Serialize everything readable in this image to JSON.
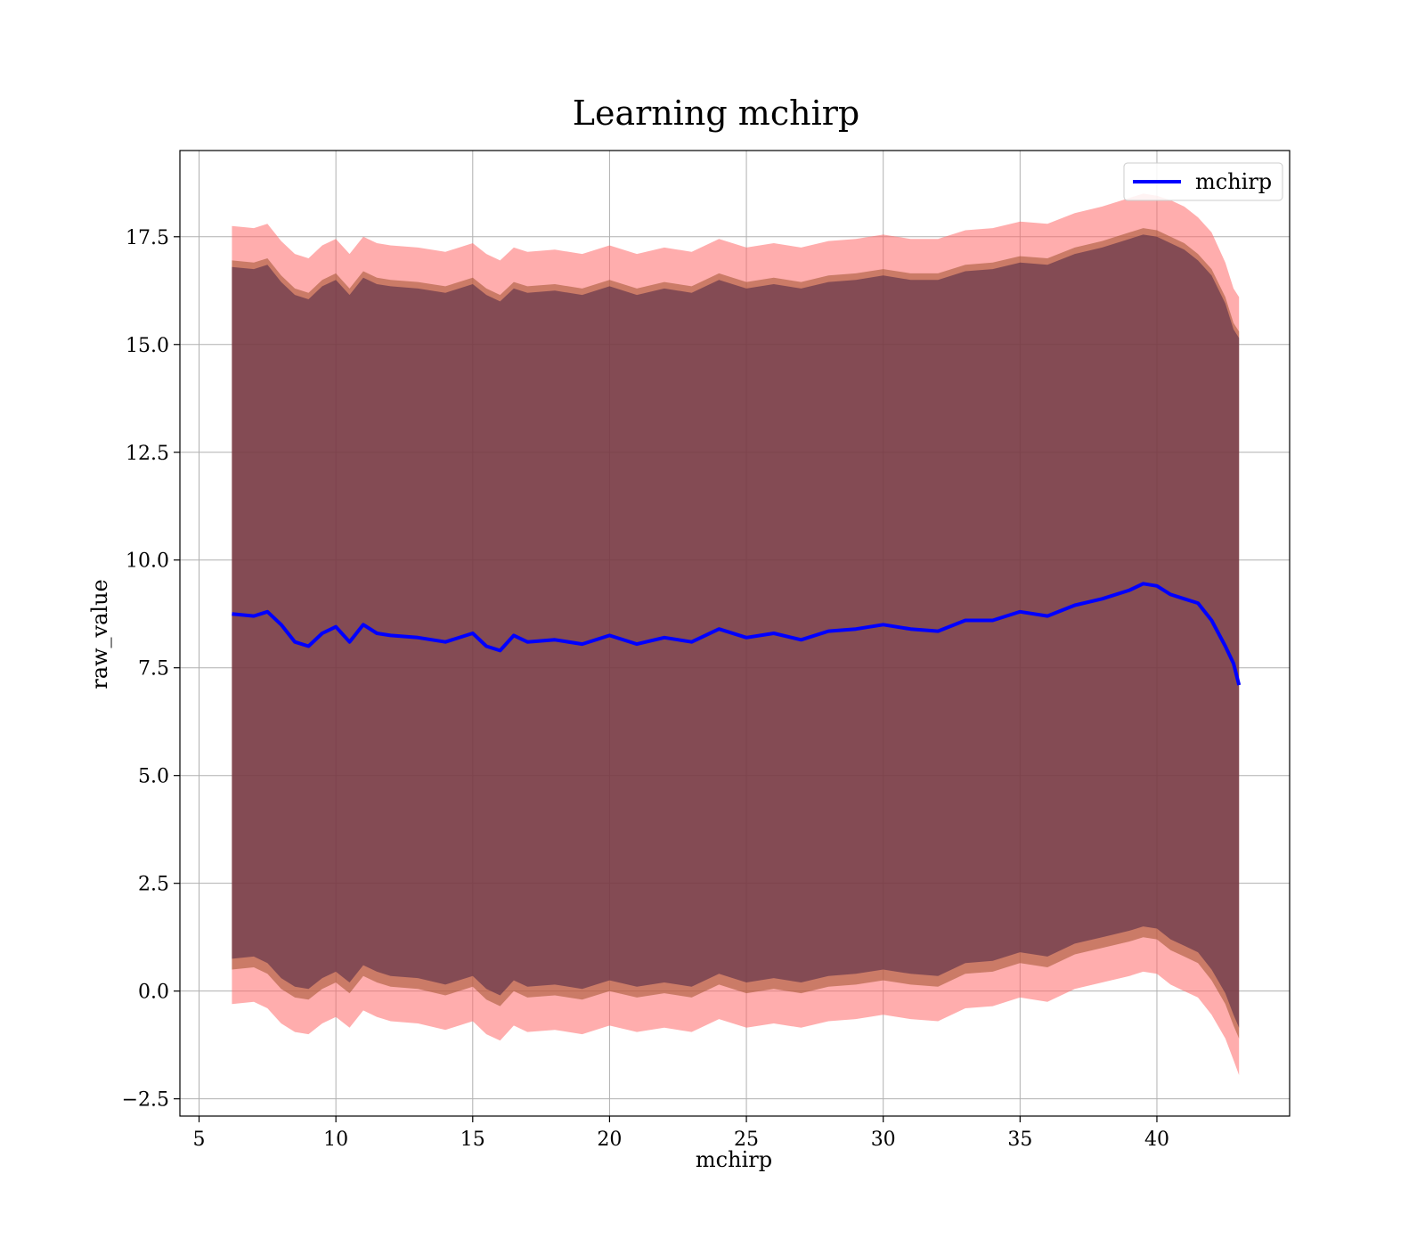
{
  "chart_data": {
    "type": "area",
    "title": "Learning mchirp",
    "xlabel": "mchirp",
    "ylabel": "raw_value",
    "xlim": [
      4.3,
      44.85
    ],
    "ylim": [
      -2.9,
      19.5
    ],
    "xticks": [
      5,
      10,
      15,
      20,
      25,
      30,
      35,
      40
    ],
    "xtick_labels": [
      "5",
      "10",
      "15",
      "20",
      "25",
      "30",
      "35",
      "40"
    ],
    "yticks": [
      -2.5,
      0.0,
      2.5,
      5.0,
      7.5,
      10.0,
      12.5,
      15.0,
      17.5
    ],
    "ytick_labels": [
      "−2.5",
      "0.0",
      "2.5",
      "5.0",
      "7.5",
      "10.0",
      "12.5",
      "15.0",
      "17.5"
    ],
    "grid": true,
    "legend": {
      "position": "top-right",
      "entries": [
        "mchirp"
      ]
    },
    "colors": {
      "line": "#0000ff",
      "outer_band": "#ff6a6a",
      "mid_band": "#a0522d",
      "inner_band": "#4b2545",
      "grid": "#b0b0b0"
    },
    "x": [
      6.2,
      7.0,
      7.5,
      8.0,
      8.5,
      9.0,
      9.5,
      10.0,
      10.5,
      11.0,
      11.5,
      12.0,
      13.0,
      14.0,
      15.0,
      15.5,
      16.0,
      16.5,
      17.0,
      18.0,
      19.0,
      20.0,
      21.0,
      22.0,
      23.0,
      24.0,
      25.0,
      26.0,
      27.0,
      28.0,
      29.0,
      30.0,
      31.0,
      32.0,
      33.0,
      34.0,
      35.0,
      36.0,
      37.0,
      38.0,
      39.0,
      39.5,
      40.0,
      40.5,
      41.0,
      41.5,
      42.0,
      42.5,
      42.8,
      43.0
    ],
    "series": [
      {
        "name": "mchirp",
        "values": [
          8.75,
          8.7,
          8.8,
          8.5,
          8.1,
          8.0,
          8.3,
          8.45,
          8.1,
          8.5,
          8.3,
          8.25,
          8.2,
          8.1,
          8.3,
          8.0,
          7.9,
          8.25,
          8.1,
          8.15,
          8.05,
          8.25,
          8.05,
          8.2,
          8.1,
          8.4,
          8.2,
          8.3,
          8.15,
          8.35,
          8.4,
          8.5,
          8.4,
          8.35,
          8.6,
          8.6,
          8.8,
          8.7,
          8.95,
          9.1,
          9.3,
          9.45,
          9.4,
          9.2,
          9.1,
          9.0,
          8.6,
          8.0,
          7.6,
          7.1
        ]
      }
    ],
    "bands": [
      {
        "lower": [
          -0.3,
          -0.25,
          -0.4,
          -0.75,
          -0.95,
          -1.0,
          -0.75,
          -0.6,
          -0.85,
          -0.45,
          -0.6,
          -0.7,
          -0.75,
          -0.9,
          -0.7,
          -1.0,
          -1.15,
          -0.8,
          -0.95,
          -0.9,
          -1.0,
          -0.8,
          -0.95,
          -0.85,
          -0.95,
          -0.65,
          -0.85,
          -0.75,
          -0.85,
          -0.7,
          -0.65,
          -0.55,
          -0.65,
          -0.7,
          -0.4,
          -0.35,
          -0.15,
          -0.25,
          0.05,
          0.2,
          0.35,
          0.45,
          0.4,
          0.15,
          0.0,
          -0.15,
          -0.55,
          -1.1,
          -1.6,
          -1.95
        ],
        "upper": [
          17.75,
          17.7,
          17.8,
          17.4,
          17.1,
          17.0,
          17.3,
          17.45,
          17.1,
          17.5,
          17.35,
          17.3,
          17.25,
          17.15,
          17.35,
          17.1,
          16.95,
          17.25,
          17.15,
          17.2,
          17.1,
          17.3,
          17.1,
          17.25,
          17.15,
          17.45,
          17.25,
          17.35,
          17.25,
          17.4,
          17.45,
          17.55,
          17.45,
          17.45,
          17.65,
          17.7,
          17.85,
          17.8,
          18.05,
          18.2,
          18.4,
          18.5,
          18.45,
          18.35,
          18.2,
          17.95,
          17.6,
          16.9,
          16.3,
          16.1
        ]
      },
      {
        "lower": [
          0.5,
          0.55,
          0.4,
          0.05,
          -0.15,
          -0.2,
          0.05,
          0.2,
          -0.05,
          0.35,
          0.2,
          0.1,
          0.05,
          -0.1,
          0.1,
          -0.2,
          -0.35,
          0.0,
          -0.15,
          -0.1,
          -0.2,
          0.0,
          -0.15,
          -0.05,
          -0.15,
          0.15,
          -0.05,
          0.05,
          -0.05,
          0.1,
          0.15,
          0.25,
          0.15,
          0.1,
          0.4,
          0.45,
          0.65,
          0.55,
          0.85,
          1.0,
          1.15,
          1.25,
          1.2,
          0.95,
          0.8,
          0.65,
          0.25,
          -0.3,
          -0.8,
          -1.1
        ],
        "upper": [
          16.95,
          16.9,
          17.0,
          16.6,
          16.3,
          16.2,
          16.5,
          16.65,
          16.3,
          16.7,
          16.55,
          16.5,
          16.45,
          16.35,
          16.55,
          16.3,
          16.15,
          16.45,
          16.35,
          16.4,
          16.3,
          16.5,
          16.3,
          16.45,
          16.35,
          16.65,
          16.45,
          16.55,
          16.45,
          16.6,
          16.65,
          16.75,
          16.65,
          16.65,
          16.85,
          16.9,
          17.05,
          17.0,
          17.25,
          17.4,
          17.6,
          17.7,
          17.65,
          17.5,
          17.35,
          17.1,
          16.75,
          16.1,
          15.5,
          15.3
        ]
      },
      {
        "lower": [
          0.75,
          0.8,
          0.65,
          0.3,
          0.1,
          0.05,
          0.3,
          0.45,
          0.2,
          0.6,
          0.45,
          0.35,
          0.3,
          0.15,
          0.35,
          0.05,
          -0.1,
          0.25,
          0.1,
          0.15,
          0.05,
          0.25,
          0.1,
          0.2,
          0.1,
          0.4,
          0.2,
          0.3,
          0.2,
          0.35,
          0.4,
          0.5,
          0.4,
          0.35,
          0.65,
          0.7,
          0.9,
          0.8,
          1.1,
          1.25,
          1.4,
          1.5,
          1.45,
          1.2,
          1.05,
          0.9,
          0.5,
          -0.05,
          -0.55,
          -0.85
        ],
        "upper": [
          16.8,
          16.75,
          16.85,
          16.45,
          16.15,
          16.05,
          16.35,
          16.5,
          16.15,
          16.55,
          16.4,
          16.35,
          16.3,
          16.2,
          16.4,
          16.15,
          16.0,
          16.3,
          16.2,
          16.25,
          16.15,
          16.35,
          16.15,
          16.3,
          16.2,
          16.5,
          16.3,
          16.4,
          16.3,
          16.45,
          16.5,
          16.6,
          16.5,
          16.5,
          16.7,
          16.75,
          16.9,
          16.85,
          17.1,
          17.25,
          17.45,
          17.55,
          17.5,
          17.35,
          17.2,
          16.95,
          16.6,
          15.95,
          15.35,
          15.15
        ]
      }
    ]
  }
}
